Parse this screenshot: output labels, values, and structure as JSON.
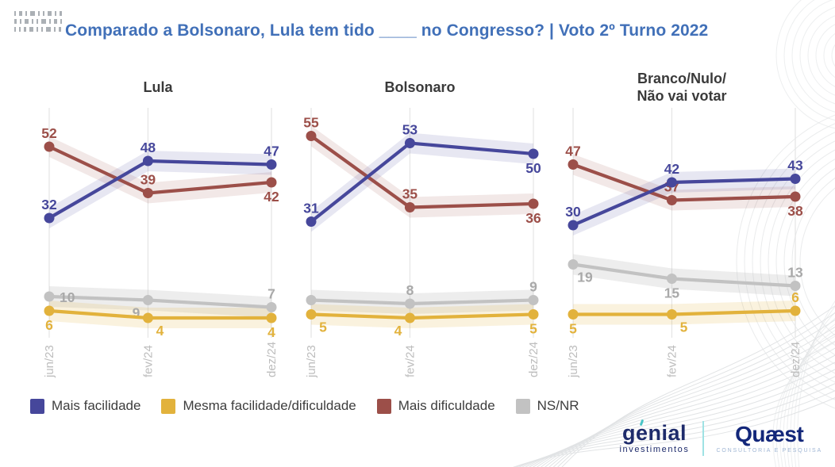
{
  "header": {
    "title": "Comparado a Bolsonaro, Lula tem tido ____ no Congresso? | Voto 2º Turno 2022"
  },
  "colors": {
    "title_blue": "#4170b8",
    "mais_facilidade": "#46479b",
    "mesma_facilidade": "#e2b23c",
    "mais_dificuldade": "#9c4f49",
    "ns_nr": "#c2c2c2",
    "gridline": "#e4e4e4",
    "tick_label": "#bdbdbd"
  },
  "legend": [
    {
      "label": "Mais facilidade",
      "color": "#46479b"
    },
    {
      "label": "Mesma facilidade/dificuldade",
      "color": "#e2b23c"
    },
    {
      "label": "Mais dificuldade",
      "color": "#9c4f49"
    },
    {
      "label": "NS/NR",
      "color": "#c2c2c2"
    }
  ],
  "footer": {
    "genial": {
      "name": "genial",
      "sub": "investimentos"
    },
    "quaest": {
      "name": "Quæst",
      "sub": "CONSULTORIA E PESQUISA"
    }
  },
  "chart_data": [
    {
      "type": "line",
      "title": "Lula",
      "x": [
        "jun/23",
        "fev/24",
        "dez/24"
      ],
      "x_months": [
        0,
        8,
        18
      ],
      "ylim": [
        0,
        60
      ],
      "grid": "vertical-only",
      "legend_position": "bottom",
      "series": [
        {
          "name": "Mais facilidade",
          "color": "#46479b",
          "band_opacity": 0.13,
          "values": [
            32,
            48,
            47
          ],
          "labels": [
            "32",
            "48",
            "47"
          ],
          "label_pos": [
            "above",
            "above",
            "above"
          ]
        },
        {
          "name": "Mesma facilidade/dificuldade",
          "color": "#e2b23c",
          "band_opacity": 0.17,
          "values": [
            6,
            4,
            4
          ],
          "labels": [
            "6",
            "4",
            "4"
          ],
          "label_pos": [
            "below",
            "below-right",
            "below"
          ]
        },
        {
          "name": "Mais dificuldade",
          "color": "#9c4f49",
          "band_opacity": 0.13,
          "values": [
            52,
            39,
            42
          ],
          "labels": [
            "52",
            "39",
            "42"
          ],
          "label_pos": [
            "above",
            "above",
            "below"
          ]
        },
        {
          "name": "NS/NR",
          "color": "#c2c2c2",
          "label_color": "#a9a9a9",
          "band_opacity": 0.3,
          "values": [
            10,
            9,
            7
          ],
          "labels": [
            "10",
            "9",
            "7"
          ],
          "label_pos": [
            "right",
            "below-left",
            "above"
          ]
        }
      ]
    },
    {
      "type": "line",
      "title": "Bolsonaro",
      "x": [
        "jun/23",
        "fev/24",
        "dez/24"
      ],
      "x_months": [
        0,
        8,
        18
      ],
      "ylim": [
        0,
        60
      ],
      "grid": "vertical-only",
      "legend_position": "bottom",
      "series": [
        {
          "name": "Mais facilidade",
          "color": "#46479b",
          "band_opacity": 0.13,
          "values": [
            31,
            53,
            50
          ],
          "labels": [
            "31",
            "53",
            "50"
          ],
          "label_pos": [
            "above",
            "above",
            "below"
          ]
        },
        {
          "name": "Mesma facilidade/dificuldade",
          "color": "#e2b23c",
          "band_opacity": 0.17,
          "values": [
            5,
            4,
            5
          ],
          "labels": [
            "5",
            "4",
            "5"
          ],
          "label_pos": [
            "below-right",
            "below-left",
            "below"
          ]
        },
        {
          "name": "Mais dificuldade",
          "color": "#9c4f49",
          "band_opacity": 0.13,
          "values": [
            55,
            35,
            36
          ],
          "labels": [
            "55",
            "35",
            "36"
          ],
          "label_pos": [
            "above",
            "above",
            "below"
          ]
        },
        {
          "name": "NS/NR",
          "color": "#c2c2c2",
          "label_color": "#a9a9a9",
          "band_opacity": 0.3,
          "values": [
            9,
            8,
            9
          ],
          "labels": [
            "",
            "8",
            "9"
          ],
          "label_pos": [
            "above",
            "above",
            "above"
          ]
        }
      ]
    },
    {
      "type": "line",
      "title": "Branco/Nulo/\nNão vai votar",
      "x": [
        "jun/23",
        "fev/24",
        "dez/24"
      ],
      "x_months": [
        0,
        8,
        18
      ],
      "ylim": [
        0,
        60
      ],
      "grid": "vertical-only",
      "legend_position": "bottom",
      "series": [
        {
          "name": "Mais facilidade",
          "color": "#46479b",
          "band_opacity": 0.13,
          "values": [
            30,
            42,
            43
          ],
          "labels": [
            "30",
            "42",
            "43"
          ],
          "label_pos": [
            "above",
            "above",
            "above"
          ]
        },
        {
          "name": "Mesma facilidade/dificuldade",
          "color": "#e2b23c",
          "band_opacity": 0.17,
          "values": [
            5,
            5,
            6
          ],
          "labels": [
            "5",
            "5",
            "6"
          ],
          "label_pos": [
            "below",
            "below-right",
            "above"
          ]
        },
        {
          "name": "Mais dificuldade",
          "color": "#9c4f49",
          "band_opacity": 0.13,
          "values": [
            47,
            37,
            38
          ],
          "labels": [
            "47",
            "37",
            "38"
          ],
          "label_pos": [
            "above",
            "above",
            "below"
          ]
        },
        {
          "name": "NS/NR",
          "color": "#c2c2c2",
          "label_color": "#a9a9a9",
          "band_opacity": 0.3,
          "values": [
            19,
            15,
            13
          ],
          "labels": [
            "19",
            "15",
            "13"
          ],
          "label_pos": [
            "below-right",
            "below",
            "above"
          ]
        }
      ]
    }
  ]
}
